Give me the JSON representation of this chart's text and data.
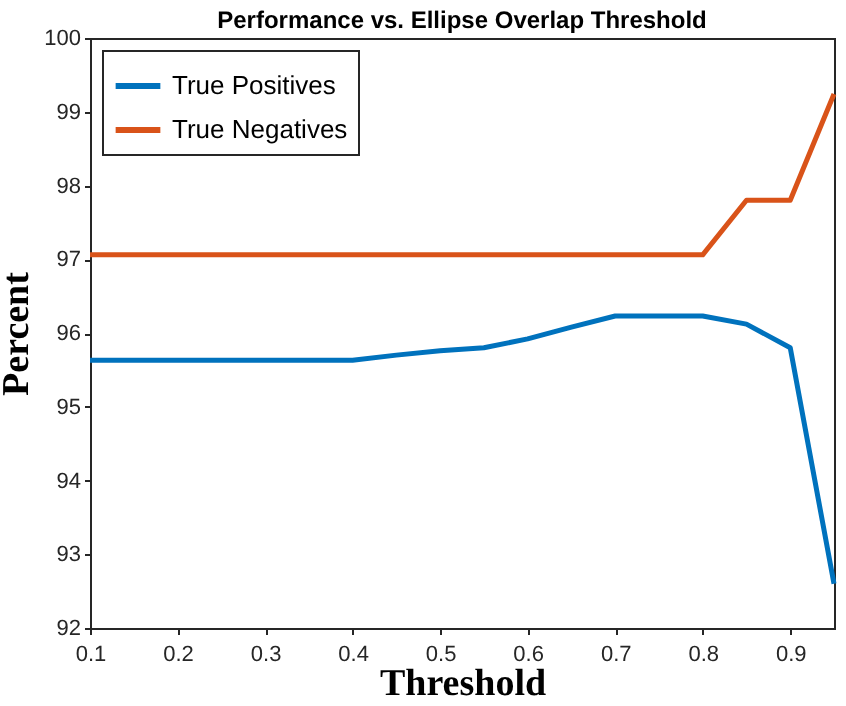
{
  "chart_data": {
    "type": "line",
    "title": "Performance vs. Ellipse Overlap Threshold",
    "xlabel": "Threshold",
    "ylabel": "Percent",
    "x": [
      0.1,
      0.15,
      0.2,
      0.25,
      0.3,
      0.35,
      0.4,
      0.45,
      0.5,
      0.55,
      0.6,
      0.65,
      0.7,
      0.75,
      0.8,
      0.85,
      0.9,
      0.95
    ],
    "series": [
      {
        "name": "True Positives",
        "color": "#0072bd",
        "values": [
          95.63,
          95.63,
          95.63,
          95.63,
          95.63,
          95.63,
          95.63,
          95.7,
          95.76,
          95.8,
          95.92,
          96.08,
          96.23,
          96.23,
          96.23,
          96.12,
          95.8,
          92.6
        ]
      },
      {
        "name": "True Negatives",
        "color": "#d95319",
        "values": [
          97.06,
          97.06,
          97.06,
          97.06,
          97.06,
          97.06,
          97.06,
          97.06,
          97.06,
          97.06,
          97.06,
          97.06,
          97.06,
          97.06,
          97.06,
          97.8,
          97.8,
          99.24
        ]
      }
    ],
    "xlim": [
      0.1,
      0.95
    ],
    "xticks": [
      0.1,
      0.2,
      0.3,
      0.4,
      0.5,
      0.6,
      0.7,
      0.8,
      0.9
    ],
    "ylim": [
      92,
      100
    ],
    "yticks": [
      92,
      93,
      94,
      95,
      96,
      97,
      98,
      99,
      100
    ],
    "grid": false,
    "legend": "top left",
    "marker": "none",
    "line_style": "solid"
  }
}
